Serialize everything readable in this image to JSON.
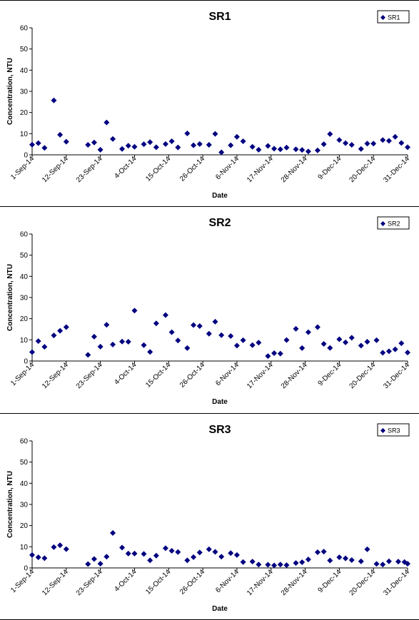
{
  "chart_data": [
    {
      "type": "scatter",
      "title": "SR1",
      "xlabel": "Date",
      "ylabel": "Concentration, NTU",
      "ylim": [
        0,
        60
      ],
      "yticks": [
        0,
        10,
        20,
        30,
        40,
        50,
        60
      ],
      "xlim": [
        "1-Sep-14",
        "31-Dec-14"
      ],
      "xticks": [
        "1-Sep-14",
        "12-Sep-14",
        "23-Sep-14",
        "4-Oct-14",
        "15-Oct-14",
        "26-Oct-14",
        "6-Nov-14",
        "17-Nov-14",
        "28-Nov-14",
        "9-Dec-14",
        "20-Dec-14",
        "31-Dec-14"
      ],
      "legend": "top-right",
      "grid": false,
      "color": "#000080",
      "series": [
        {
          "name": "SR1",
          "points": [
            [
              "1-Sep-14",
              4.8
            ],
            [
              "3-Sep-14",
              5.5
            ],
            [
              "5-Sep-14",
              3.3
            ],
            [
              "8-Sep-14",
              25.7
            ],
            [
              "10-Sep-14",
              9.5
            ],
            [
              "12-Sep-14",
              6.2
            ],
            [
              "19-Sep-14",
              4.7
            ],
            [
              "21-Sep-14",
              5.8
            ],
            [
              "23-Sep-14",
              2.4
            ],
            [
              "25-Sep-14",
              15.3
            ],
            [
              "27-Sep-14",
              7.5
            ],
            [
              "30-Sep-14",
              2.8
            ],
            [
              "2-Oct-14",
              4.3
            ],
            [
              "4-Oct-14",
              3.8
            ],
            [
              "7-Oct-14",
              5.0
            ],
            [
              "9-Oct-14",
              6.0
            ],
            [
              "11-Oct-14",
              3.6
            ],
            [
              "14-Oct-14",
              5.1
            ],
            [
              "16-Oct-14",
              6.4
            ],
            [
              "18-Oct-14",
              3.5
            ],
            [
              "21-Oct-14",
              10.1
            ],
            [
              "23-Oct-14",
              4.5
            ],
            [
              "25-Oct-14",
              5.1
            ],
            [
              "28-Oct-14",
              4.7
            ],
            [
              "30-Oct-14",
              9.9
            ],
            [
              "1-Nov-14",
              1.2
            ],
            [
              "4-Nov-14",
              4.5
            ],
            [
              "6-Nov-14",
              8.5
            ],
            [
              "8-Nov-14",
              6.4
            ],
            [
              "11-Nov-14",
              3.8
            ],
            [
              "13-Nov-14",
              2.4
            ],
            [
              "16-Nov-14",
              4.2
            ],
            [
              "18-Nov-14",
              2.9
            ],
            [
              "20-Nov-14",
              2.6
            ],
            [
              "22-Nov-14",
              3.4
            ],
            [
              "25-Nov-14",
              2.6
            ],
            [
              "27-Nov-14",
              2.3
            ],
            [
              "29-Nov-14",
              1.6
            ],
            [
              "2-Dec-14",
              2.1
            ],
            [
              "4-Dec-14",
              5.0
            ],
            [
              "6-Dec-14",
              9.8
            ],
            [
              "9-Dec-14",
              7.0
            ],
            [
              "11-Dec-14",
              5.5
            ],
            [
              "13-Dec-14",
              4.7
            ],
            [
              "16-Dec-14",
              2.8
            ],
            [
              "18-Dec-14",
              5.3
            ],
            [
              "20-Dec-14",
              5.3
            ],
            [
              "23-Dec-14",
              7.0
            ],
            [
              "25-Dec-14",
              6.6
            ],
            [
              "27-Dec-14",
              8.5
            ],
            [
              "29-Dec-14",
              5.6
            ],
            [
              "31-Dec-14",
              3.6
            ]
          ]
        }
      ]
    },
    {
      "type": "scatter",
      "title": "SR2",
      "xlabel": "Date",
      "ylabel": "Concentration, NTU",
      "ylim": [
        0,
        60
      ],
      "yticks": [
        0,
        10,
        20,
        30,
        40,
        50,
        60
      ],
      "xlim": [
        "1-Sep-14",
        "31-Dec-14"
      ],
      "xticks": [
        "1-Sep-14",
        "12-Sep-14",
        "23-Sep-14",
        "4-Oct-14",
        "15-Oct-14",
        "26-Oct-14",
        "6-Nov-14",
        "17-Nov-14",
        "28-Nov-14",
        "9-Dec-14",
        "20-Dec-14",
        "31-Dec-14"
      ],
      "legend": "top-right",
      "grid": false,
      "color": "#000080",
      "series": [
        {
          "name": "SR2",
          "points": [
            [
              "1-Sep-14",
              4.2
            ],
            [
              "3-Sep-14",
              9.4
            ],
            [
              "5-Sep-14",
              6.7
            ],
            [
              "8-Sep-14",
              12.1
            ],
            [
              "10-Sep-14",
              14.3
            ],
            [
              "12-Sep-14",
              16.0
            ],
            [
              "19-Sep-14",
              2.9
            ],
            [
              "21-Sep-14",
              11.5
            ],
            [
              "23-Sep-14",
              6.8
            ],
            [
              "25-Sep-14",
              17.1
            ],
            [
              "27-Sep-14",
              7.8
            ],
            [
              "30-Sep-14",
              9.2
            ],
            [
              "2-Oct-14",
              9.1
            ],
            [
              "4-Oct-14",
              23.8
            ],
            [
              "7-Oct-14",
              7.5
            ],
            [
              "9-Oct-14",
              4.3
            ],
            [
              "11-Oct-14",
              17.8
            ],
            [
              "14-Oct-14",
              21.7
            ],
            [
              "16-Oct-14",
              13.6
            ],
            [
              "18-Oct-14",
              9.7
            ],
            [
              "21-Oct-14",
              6.1
            ],
            [
              "23-Oct-14",
              17.0
            ],
            [
              "25-Oct-14",
              16.5
            ],
            [
              "28-Oct-14",
              12.9
            ],
            [
              "30-Oct-14",
              18.6
            ],
            [
              "1-Nov-14",
              12.2
            ],
            [
              "4-Nov-14",
              11.8
            ],
            [
              "6-Nov-14",
              7.3
            ],
            [
              "8-Nov-14",
              9.8
            ],
            [
              "11-Nov-14",
              7.5
            ],
            [
              "13-Nov-14",
              8.7
            ],
            [
              "16-Nov-14",
              2.3
            ],
            [
              "18-Nov-14",
              3.7
            ],
            [
              "20-Nov-14",
              3.5
            ],
            [
              "22-Nov-14",
              9.9
            ],
            [
              "25-Nov-14",
              15.2
            ],
            [
              "27-Nov-14",
              6.1
            ],
            [
              "29-Nov-14",
              13.6
            ],
            [
              "2-Dec-14",
              16.0
            ],
            [
              "4-Dec-14",
              8.1
            ],
            [
              "6-Dec-14",
              6.2
            ],
            [
              "9-Dec-14",
              10.3
            ],
            [
              "11-Dec-14",
              8.8
            ],
            [
              "13-Dec-14",
              11.0
            ],
            [
              "16-Dec-14",
              7.3
            ],
            [
              "18-Dec-14",
              9.1
            ],
            [
              "21-Dec-14",
              9.8
            ],
            [
              "23-Dec-14",
              3.9
            ],
            [
              "25-Dec-14",
              4.6
            ],
            [
              "27-Dec-14",
              5.5
            ],
            [
              "29-Dec-14",
              8.4
            ],
            [
              "31-Dec-14",
              4.0
            ]
          ]
        }
      ]
    },
    {
      "type": "scatter",
      "title": "SR3",
      "xlabel": "Date",
      "ylabel": "Concentration, NTU",
      "ylim": [
        0,
        60
      ],
      "yticks": [
        0,
        10,
        20,
        30,
        40,
        50,
        60
      ],
      "xlim": [
        "1-Sep-14",
        "31-Dec-14"
      ],
      "xticks": [
        "1-Sep-14",
        "12-Sep-14",
        "23-Sep-14",
        "4-Oct-14",
        "15-Oct-14",
        "26-Oct-14",
        "6-Nov-14",
        "17-Nov-14",
        "28-Nov-14",
        "9-Dec-14",
        "20-Dec-14",
        "31-Dec-14"
      ],
      "legend": "top-right",
      "grid": false,
      "color": "#000080",
      "series": [
        {
          "name": "SR3",
          "points": [
            [
              "1-Sep-14",
              6.1
            ],
            [
              "3-Sep-14",
              5.0
            ],
            [
              "5-Sep-14",
              4.6
            ],
            [
              "8-Sep-14",
              9.8
            ],
            [
              "10-Sep-14",
              10.7
            ],
            [
              "12-Sep-14",
              8.9
            ],
            [
              "19-Sep-14",
              1.8
            ],
            [
              "21-Sep-14",
              4.2
            ],
            [
              "23-Sep-14",
              2.0
            ],
            [
              "25-Sep-14",
              5.3
            ],
            [
              "27-Sep-14",
              16.5
            ],
            [
              "30-Sep-14",
              9.6
            ],
            [
              "2-Oct-14",
              6.8
            ],
            [
              "4-Oct-14",
              6.8
            ],
            [
              "7-Oct-14",
              6.6
            ],
            [
              "9-Oct-14",
              3.6
            ],
            [
              "11-Oct-14",
              5.8
            ],
            [
              "14-Oct-14",
              9.3
            ],
            [
              "16-Oct-14",
              8.1
            ],
            [
              "18-Oct-14",
              7.5
            ],
            [
              "21-Oct-14",
              3.6
            ],
            [
              "23-Oct-14",
              5.1
            ],
            [
              "25-Oct-14",
              7.3
            ],
            [
              "28-Oct-14",
              8.8
            ],
            [
              "30-Oct-14",
              7.6
            ],
            [
              "1-Nov-14",
              5.3
            ],
            [
              "4-Nov-14",
              7.0
            ],
            [
              "6-Nov-14",
              6.1
            ],
            [
              "8-Nov-14",
              2.8
            ],
            [
              "11-Nov-14",
              3.0
            ],
            [
              "13-Nov-14",
              1.6
            ],
            [
              "16-Nov-14",
              1.5
            ],
            [
              "18-Nov-14",
              1.2
            ],
            [
              "20-Nov-14",
              1.6
            ],
            [
              "22-Nov-14",
              1.3
            ],
            [
              "25-Nov-14",
              2.3
            ],
            [
              "27-Nov-14",
              2.7
            ],
            [
              "29-Nov-14",
              4.0
            ],
            [
              "2-Dec-14",
              7.4
            ],
            [
              "4-Dec-14",
              7.7
            ],
            [
              "6-Dec-14",
              3.5
            ],
            [
              "9-Dec-14",
              5.0
            ],
            [
              "11-Dec-14",
              4.5
            ],
            [
              "13-Dec-14",
              3.7
            ],
            [
              "16-Dec-14",
              3.1
            ],
            [
              "18-Dec-14",
              8.8
            ],
            [
              "21-Dec-14",
              1.9
            ],
            [
              "23-Dec-14",
              1.6
            ],
            [
              "25-Dec-14",
              3.1
            ],
            [
              "28-Dec-14",
              3.0
            ],
            [
              "30-Dec-14",
              2.8
            ],
            [
              "31-Dec-14",
              2.0
            ]
          ]
        }
      ]
    }
  ]
}
